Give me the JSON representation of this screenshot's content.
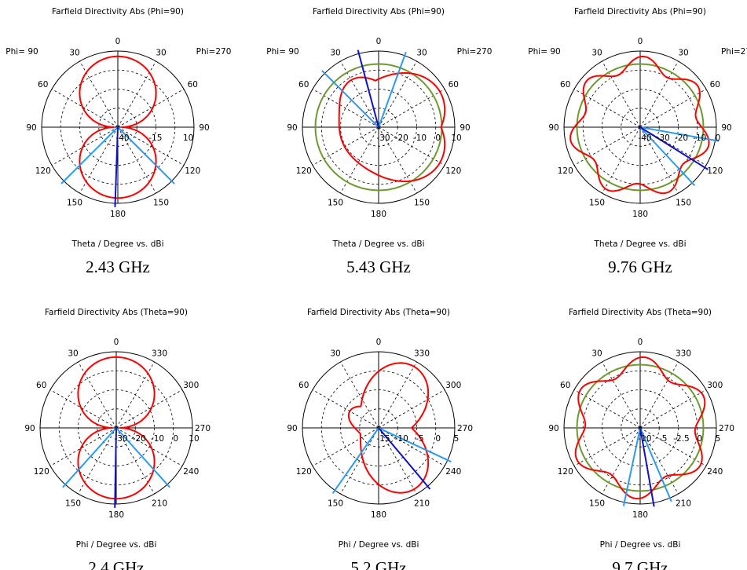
{
  "colors": {
    "main_lobe": "#ff0000",
    "reference_circle": "#6b9a2f",
    "max_direction": "#1010c8",
    "beam_width": "#2a9cf0",
    "grid": "#000000"
  },
  "chart_data": [
    {
      "type": "polar",
      "title": "Farfield Directivity Abs (Phi=90)",
      "xlabel": "Theta / Degree vs. dBi",
      "frequency_label": "2.43 GHz",
      "side_labels": [
        "Phi= 90",
        "Phi=270"
      ],
      "angle_ticks": [
        {
          "deg": 0,
          "text": "0"
        },
        {
          "deg": 30,
          "text": "30"
        },
        {
          "deg": 60,
          "text": "60"
        },
        {
          "deg": 90,
          "text": "90"
        },
        {
          "deg": 120,
          "text": "120"
        },
        {
          "deg": 150,
          "text": "150"
        },
        {
          "deg": 180,
          "text": "180"
        },
        {
          "deg": 210,
          "text": "150"
        },
        {
          "deg": 240,
          "text": "120"
        },
        {
          "deg": 270,
          "text": "90"
        },
        {
          "deg": 300,
          "text": "60"
        },
        {
          "deg": 330,
          "text": "30"
        }
      ],
      "radial_ticks": [
        "-40",
        "-15",
        "10"
      ],
      "rlim": [
        -40,
        10
      ],
      "pattern": {
        "type": "dipole",
        "lobes": [
          0,
          180
        ],
        "min": 0.05
      },
      "max_direction_deg": 178,
      "beam_edges_deg": [
        135,
        225
      ],
      "reference_circle": false
    },
    {
      "type": "polar",
      "title": "Farfield Directivity Abs (Phi=90)",
      "xlabel": "Theta / Degree vs. dBi",
      "frequency_label": "5.43 GHz",
      "side_labels": [
        "Phi= 90",
        "Phi=270"
      ],
      "angle_ticks": [
        {
          "deg": 0,
          "text": "0"
        },
        {
          "deg": 30,
          "text": "30"
        },
        {
          "deg": 60,
          "text": "60"
        },
        {
          "deg": 90,
          "text": "90"
        },
        {
          "deg": 120,
          "text": "120"
        },
        {
          "deg": 150,
          "text": "150"
        },
        {
          "deg": 180,
          "text": "180"
        },
        {
          "deg": 210,
          "text": "150"
        },
        {
          "deg": 240,
          "text": "120"
        },
        {
          "deg": 270,
          "text": "90"
        },
        {
          "deg": 300,
          "text": "60"
        },
        {
          "deg": 330,
          "text": "30"
        }
      ],
      "radial_ticks": [
        "-30",
        "-20",
        "-10",
        "0",
        "10"
      ],
      "rlim": [
        -30,
        10
      ],
      "pattern": {
        "type": "skewed",
        "lobes": [
          300,
          240,
          30
        ],
        "min": 0.55
      },
      "max_direction_deg": 15,
      "beam_edges_deg": [
        45,
        340
      ],
      "reference_circle": true
    },
    {
      "type": "polar",
      "title": "Farfield Directivity Abs (Phi=90)",
      "xlabel": "Theta / Degree vs. dBi",
      "frequency_label": "9.76 GHz",
      "side_labels": [
        "Phi= 90",
        "Phi=27"
      ],
      "angle_ticks": [
        {
          "deg": 0,
          "text": "0"
        },
        {
          "deg": 30,
          "text": "30"
        },
        {
          "deg": 60,
          "text": "60"
        },
        {
          "deg": 90,
          "text": "90"
        },
        {
          "deg": 120,
          "text": "120"
        },
        {
          "deg": 150,
          "text": "150"
        },
        {
          "deg": 180,
          "text": "180"
        },
        {
          "deg": 210,
          "text": "150"
        },
        {
          "deg": 240,
          "text": "120"
        },
        {
          "deg": 270,
          "text": "90"
        },
        {
          "deg": 300,
          "text": "60"
        },
        {
          "deg": 330,
          "text": "30"
        }
      ],
      "radial_ticks": [
        "-40",
        "-30",
        "-20",
        "-10",
        "0"
      ],
      "rlim": [
        -40,
        0
      ],
      "pattern": {
        "type": "multilobe",
        "lobes": 7,
        "min": 0.55
      },
      "max_direction_deg": 238,
      "beam_edges_deg": [
        260,
        223
      ],
      "reference_circle": true
    },
    {
      "type": "polar",
      "title": "Farfield Directivity Abs (Theta=90)",
      "xlabel": "Phi / Degree vs. dBi",
      "frequency_label": "2.4 GHz",
      "side_labels": [],
      "angle_ticks": [
        {
          "deg": 0,
          "text": "0"
        },
        {
          "deg": 30,
          "text": "30"
        },
        {
          "deg": 60,
          "text": "60"
        },
        {
          "deg": 90,
          "text": "90"
        },
        {
          "deg": 120,
          "text": "120"
        },
        {
          "deg": 150,
          "text": "150"
        },
        {
          "deg": 180,
          "text": "180"
        },
        {
          "deg": 210,
          "text": "210"
        },
        {
          "deg": 240,
          "text": "240"
        },
        {
          "deg": 270,
          "text": "270"
        },
        {
          "deg": 300,
          "text": "300"
        },
        {
          "deg": 330,
          "text": "330"
        }
      ],
      "radial_ticks": [
        "-30",
        "-20",
        "-10",
        "0",
        "10"
      ],
      "rlim": [
        -30,
        10
      ],
      "pattern": {
        "type": "dipole",
        "lobes": [
          0,
          180
        ],
        "min": 0.05
      },
      "max_direction_deg": 179,
      "beam_edges_deg": [
        138,
        222
      ],
      "reference_circle": false
    },
    {
      "type": "polar",
      "title": "Farfield Directivity Abs (Theta=90)",
      "xlabel": "Phi / Degree vs. dBi",
      "frequency_label": "5.2 GHz",
      "side_labels": [],
      "angle_ticks": [
        {
          "deg": 0,
          "text": "0"
        },
        {
          "deg": 30,
          "text": "30"
        },
        {
          "deg": 60,
          "text": "60"
        },
        {
          "deg": 90,
          "text": "90"
        },
        {
          "deg": 120,
          "text": "120"
        },
        {
          "deg": 150,
          "text": "150"
        },
        {
          "deg": 180,
          "text": "180"
        },
        {
          "deg": 210,
          "text": "210"
        },
        {
          "deg": 240,
          "text": "240"
        },
        {
          "deg": 270,
          "text": "270"
        },
        {
          "deg": 300,
          "text": "300"
        },
        {
          "deg": 330,
          "text": "330"
        }
      ],
      "radial_ticks": [
        "-15",
        "-10",
        "-5",
        "0",
        "5"
      ],
      "rlim": [
        -15,
        5
      ],
      "pattern": {
        "type": "skewed",
        "lobes": [
          330,
          210,
          60
        ],
        "min": 0.25
      },
      "max_direction_deg": 220,
      "beam_edges_deg": [
        145,
        245
      ],
      "reference_circle": false
    },
    {
      "type": "polar",
      "title": "Farfield Directivity Abs (Theta=90)",
      "xlabel": "Phi / Degree vs. dBi",
      "frequency_label": "9.7 GHz",
      "side_labels": [],
      "angle_ticks": [
        {
          "deg": 0,
          "text": "0"
        },
        {
          "deg": 30,
          "text": "30"
        },
        {
          "deg": 60,
          "text": "60"
        },
        {
          "deg": 90,
          "text": "90"
        },
        {
          "deg": 120,
          "text": "120"
        },
        {
          "deg": 150,
          "text": "150"
        },
        {
          "deg": 180,
          "text": "180"
        },
        {
          "deg": 210,
          "text": "210"
        },
        {
          "deg": 240,
          "text": "240"
        },
        {
          "deg": 270,
          "text": "270"
        },
        {
          "deg": 300,
          "text": "300"
        },
        {
          "deg": 330,
          "text": "330"
        }
      ],
      "radial_ticks": [
        "-10",
        "-5",
        "-2.5",
        "0",
        "5"
      ],
      "rlim": [
        -10,
        5
      ],
      "pattern": {
        "type": "multilobe",
        "lobes": 6,
        "min": 0.5
      },
      "max_direction_deg": 190,
      "beam_edges_deg": [
        168,
        203
      ],
      "reference_circle": true
    }
  ]
}
